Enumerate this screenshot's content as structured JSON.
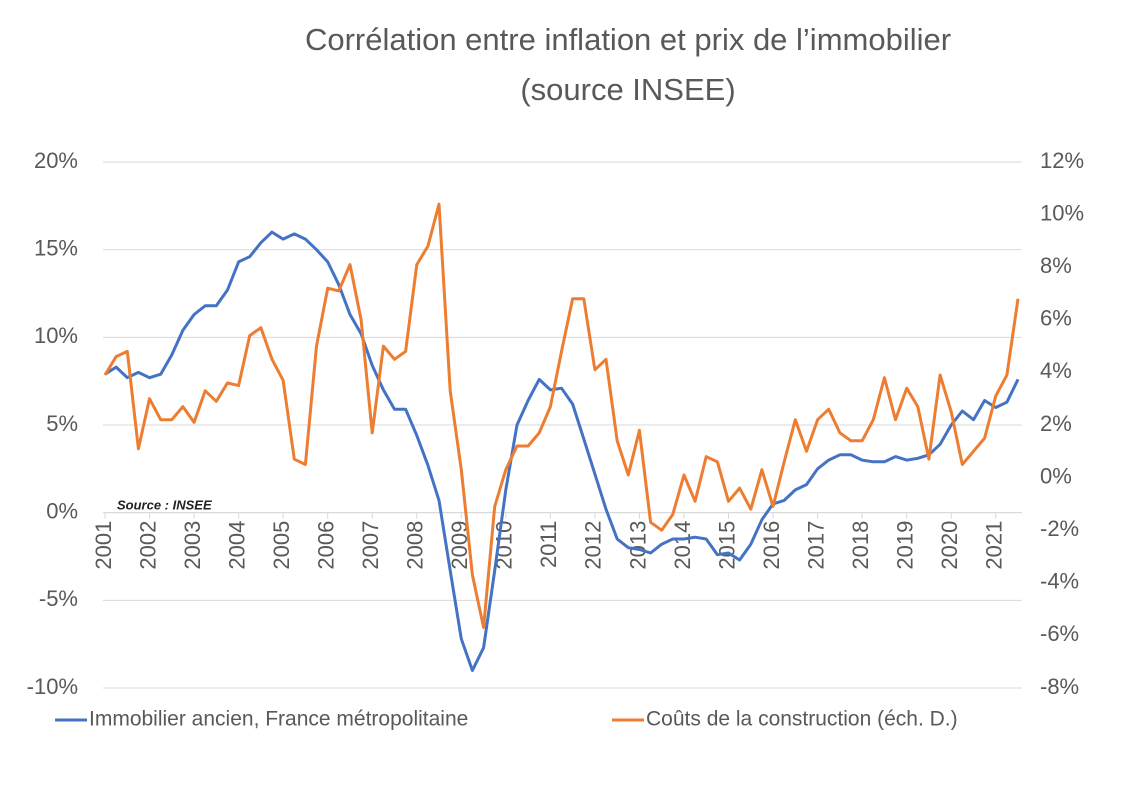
{
  "chart_data": {
    "type": "line",
    "title": "Corrélation entre inflation et prix de l’immobilier",
    "subtitle": "(source INSEE)",
    "annotation": "Source : INSEE",
    "x": [
      2001,
      2001.25,
      2001.5,
      2001.75,
      2002,
      2002.25,
      2002.5,
      2002.75,
      2003,
      2003.25,
      2003.5,
      2003.75,
      2004,
      2004.25,
      2004.5,
      2004.75,
      2005,
      2005.25,
      2005.5,
      2005.75,
      2006,
      2006.25,
      2006.5,
      2006.75,
      2007,
      2007.25,
      2007.5,
      2007.75,
      2008,
      2008.25,
      2008.5,
      2008.75,
      2009,
      2009.25,
      2009.5,
      2009.75,
      2010,
      2010.25,
      2010.5,
      2010.75,
      2011,
      2011.25,
      2011.5,
      2011.75,
      2012,
      2012.25,
      2012.5,
      2012.75,
      2013,
      2013.25,
      2013.5,
      2013.75,
      2014,
      2014.25,
      2014.5,
      2014.75,
      2015,
      2015.25,
      2015.5,
      2015.75,
      2016,
      2016.25,
      2016.5,
      2016.75,
      2017,
      2017.25,
      2017.5,
      2017.75,
      2018,
      2018.25,
      2018.5,
      2018.75,
      2019,
      2019.25,
      2019.5,
      2019.75,
      2020,
      2020.25,
      2020.5,
      2020.75,
      2021,
      2021.25,
      2021.5
    ],
    "series": [
      {
        "name": "Immobilier ancien, France métropolitaine",
        "color": "#4472c4",
        "axis": "y",
        "values": [
          7.9,
          8.3,
          7.7,
          8.0,
          7.7,
          7.9,
          9.0,
          10.4,
          11.3,
          11.8,
          11.8,
          12.7,
          14.3,
          14.6,
          15.4,
          16.0,
          15.6,
          15.9,
          15.6,
          15.0,
          14.3,
          13.0,
          11.3,
          10.2,
          8.4,
          7.0,
          5.9,
          5.9,
          4.4,
          2.7,
          0.7,
          -3.3,
          -7.2,
          -9.0,
          -7.7,
          -3.3,
          1.3,
          5.0,
          6.4,
          7.6,
          7.0,
          7.1,
          6.2,
          4.2,
          2.2,
          0.2,
          -1.5,
          -2.0,
          -2.1,
          -2.3,
          -1.8,
          -1.5,
          -1.5,
          -1.4,
          -1.5,
          -2.4,
          -2.3,
          -2.7,
          -1.8,
          -0.4,
          0.5,
          0.7,
          1.3,
          1.6,
          2.5,
          3.0,
          3.3,
          3.3,
          3.0,
          2.9,
          2.9,
          3.2,
          3.0,
          3.1,
          3.3,
          3.9,
          5.0,
          5.8,
          5.3,
          6.4,
          6.0,
          6.3,
          7.6
        ]
      },
      {
        "name": "Coûts de la construction (éch. D.)",
        "color": "#ed7d31",
        "axis": "y2",
        "values": [
          3.9,
          4.6,
          4.8,
          1.1,
          3.0,
          2.2,
          2.2,
          2.7,
          2.1,
          3.3,
          2.9,
          3.6,
          3.5,
          5.4,
          5.7,
          4.5,
          3.7,
          0.7,
          0.5,
          5.0,
          7.2,
          7.1,
          8.1,
          6.0,
          1.7,
          5.0,
          4.5,
          4.8,
          8.1,
          8.8,
          10.4,
          3.3,
          0.3,
          -3.7,
          -5.7,
          -1.1,
          0.3,
          1.2,
          1.2,
          1.7,
          2.7,
          4.8,
          6.8,
          6.8,
          4.1,
          4.5,
          1.4,
          0.1,
          1.8,
          -1.7,
          -2.0,
          -1.4,
          0.1,
          -0.9,
          0.8,
          0.6,
          -0.9,
          -0.4,
          -1.2,
          0.3,
          -1.1,
          0.6,
          2.2,
          1.0,
          2.2,
          2.6,
          1.7,
          1.4,
          1.4,
          2.2,
          3.8,
          2.2,
          3.4,
          2.7,
          0.7,
          3.9,
          2.5,
          0.5,
          1.0,
          1.5,
          3.1,
          3.9,
          6.8
        ]
      }
    ],
    "xlim": [
      2001,
      2021.5
    ],
    "xticks": [
      2001,
      2002,
      2003,
      2004,
      2005,
      2006,
      2007,
      2008,
      2009,
      2010,
      2011,
      2012,
      2013,
      2014,
      2015,
      2016,
      2017,
      2018,
      2019,
      2020,
      2021
    ],
    "ylim": [
      -10,
      20
    ],
    "yticks": [
      {
        "value": -10,
        "label": "-10%"
      },
      {
        "value": -5,
        "label": "-5%"
      },
      {
        "value": 0,
        "label": "0%"
      },
      {
        "value": 5,
        "label": "5%"
      },
      {
        "value": 10,
        "label": "10%"
      },
      {
        "value": 15,
        "label": "15%"
      },
      {
        "value": 20,
        "label": "20%"
      }
    ],
    "y2lim": [
      -8,
      12
    ],
    "y2ticks": [
      {
        "value": -8,
        "label": "-8%"
      },
      {
        "value": -6,
        "label": "-6%"
      },
      {
        "value": -4,
        "label": "-4%"
      },
      {
        "value": -2,
        "label": "-2%"
      },
      {
        "value": 0,
        "label": "0%"
      },
      {
        "value": 2,
        "label": "2%"
      },
      {
        "value": 4,
        "label": "4%"
      },
      {
        "value": 6,
        "label": "6%"
      },
      {
        "value": 8,
        "label": "8%"
      },
      {
        "value": 10,
        "label": "10%"
      },
      {
        "value": 12,
        "label": "12%"
      }
    ],
    "grid": true,
    "legend": "bottom"
  }
}
